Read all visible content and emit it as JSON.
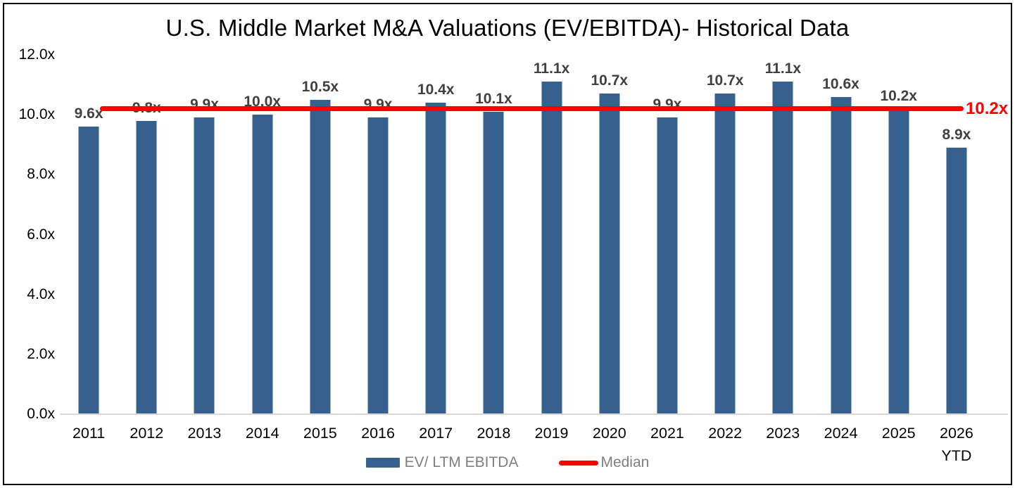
{
  "chart_data": {
    "type": "bar",
    "title": "U.S. Middle Market M&A Valuations (EV/EBITDA)- Historical Data",
    "categories": [
      "2011",
      "2012",
      "2013",
      "2014",
      "2015",
      "2016",
      "2017",
      "2018",
      "2019",
      "2020",
      "2021",
      "2022",
      "2023",
      "2024",
      "2025",
      "2026\nYTD"
    ],
    "series": [
      {
        "name": "EV/ LTM EBITDA",
        "values": [
          9.6,
          9.8,
          9.9,
          10.0,
          10.5,
          9.9,
          10.4,
          10.1,
          11.1,
          10.7,
          9.9,
          10.7,
          11.1,
          10.6,
          10.2,
          8.9
        ],
        "labels": [
          "9.6x",
          "9.8x",
          "9.9x",
          "10.0x",
          "10.5x",
          "9.9x",
          "10.4x",
          "10.1x",
          "11.1x",
          "10.7x",
          "9.9x",
          "10.7x",
          "11.1x",
          "10.6x",
          "10.2x",
          "8.9x"
        ]
      }
    ],
    "median": {
      "name": "Median",
      "value": 10.2,
      "label": "10.2x"
    },
    "ylim": [
      0,
      12
    ],
    "yticks": [
      {
        "value": 12,
        "label": "12.0x"
      },
      {
        "value": 10,
        "label": "10.0x"
      },
      {
        "value": 8,
        "label": "8.0x"
      },
      {
        "value": 6,
        "label": "6.0x"
      },
      {
        "value": 4,
        "label": "4.0x"
      },
      {
        "value": 2,
        "label": "2.0x"
      },
      {
        "value": 0,
        "label": "0.0x"
      }
    ],
    "grid": false,
    "legend_position": "bottom-center",
    "legend": [
      {
        "label": "EV/ LTM EBITDA",
        "marker": "bar"
      },
      {
        "label": "Median",
        "marker": "line"
      }
    ],
    "colors": {
      "bar": "#36618E",
      "median_line": "#FF0000",
      "bar_label": "#404040",
      "axis_label": "#000000",
      "legend_label": "#7F7F7F",
      "baseline": "#D9D9D9"
    }
  }
}
